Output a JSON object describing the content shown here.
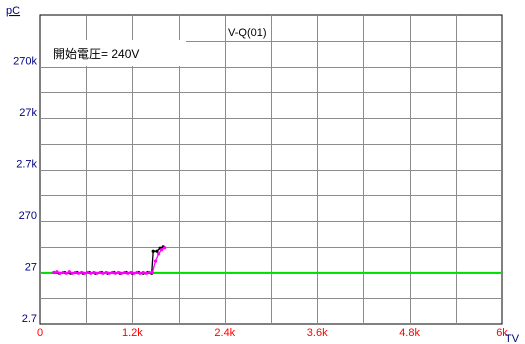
{
  "chart_data": {
    "type": "line",
    "title": "V-Q(01)",
    "annotation": "開始電圧= 240V",
    "ylabel": "pC",
    "xlabel": "TV",
    "xlim": [
      0,
      6000
    ],
    "x_ticks": [
      {
        "value": 0,
        "label": "0"
      },
      {
        "value": 1200,
        "label": "1.2k"
      },
      {
        "value": 2400,
        "label": "2.4k"
      },
      {
        "value": 3600,
        "label": "3.6k"
      },
      {
        "value": 4800,
        "label": "4.8k"
      },
      {
        "value": 6000,
        "label": "6k"
      }
    ],
    "y_ticks": [
      "270k",
      "27k",
      "2.7k",
      "270",
      "27",
      "2.7"
    ],
    "y_scale": "log",
    "grid": true,
    "colors": {
      "x_tick": "#ff0000",
      "y_tick": "#000080",
      "threshold": "#00dd00",
      "series_a": "#000000",
      "series_b": "#ff00ff"
    },
    "threshold_line": {
      "level_label": "27"
    },
    "series": [
      {
        "color": "#000000",
        "points": [
          [
            180,
            27
          ],
          [
            250,
            26
          ],
          [
            320,
            27
          ],
          [
            400,
            26
          ],
          [
            480,
            27
          ],
          [
            560,
            26
          ],
          [
            640,
            27
          ],
          [
            720,
            26
          ],
          [
            800,
            27
          ],
          [
            880,
            26
          ],
          [
            960,
            27
          ],
          [
            1040,
            26
          ],
          [
            1120,
            27
          ],
          [
            1200,
            26
          ],
          [
            1280,
            27
          ],
          [
            1340,
            26
          ],
          [
            1400,
            27
          ],
          [
            1450,
            26
          ],
          [
            1470,
            70
          ],
          [
            1520,
            70
          ],
          [
            1560,
            80
          ],
          [
            1600,
            85
          ]
        ]
      },
      {
        "color": "#ff00ff",
        "points": [
          [
            180,
            27
          ],
          [
            220,
            28
          ],
          [
            260,
            26
          ],
          [
            300,
            27
          ],
          [
            340,
            26
          ],
          [
            380,
            28
          ],
          [
            420,
            26
          ],
          [
            460,
            27
          ],
          [
            500,
            26
          ],
          [
            540,
            27
          ],
          [
            580,
            26
          ],
          [
            620,
            27
          ],
          [
            660,
            26
          ],
          [
            700,
            27
          ],
          [
            740,
            26
          ],
          [
            780,
            27
          ],
          [
            820,
            26
          ],
          [
            860,
            27
          ],
          [
            900,
            26
          ],
          [
            940,
            27
          ],
          [
            980,
            26
          ],
          [
            1020,
            27
          ],
          [
            1060,
            26
          ],
          [
            1100,
            27
          ],
          [
            1140,
            26
          ],
          [
            1180,
            27
          ],
          [
            1220,
            26
          ],
          [
            1260,
            27
          ],
          [
            1300,
            26
          ],
          [
            1340,
            27
          ],
          [
            1380,
            26
          ],
          [
            1420,
            27
          ],
          [
            1460,
            27
          ],
          [
            1500,
            45
          ],
          [
            1540,
            62
          ],
          [
            1580,
            75
          ],
          [
            1620,
            82
          ]
        ]
      }
    ]
  }
}
